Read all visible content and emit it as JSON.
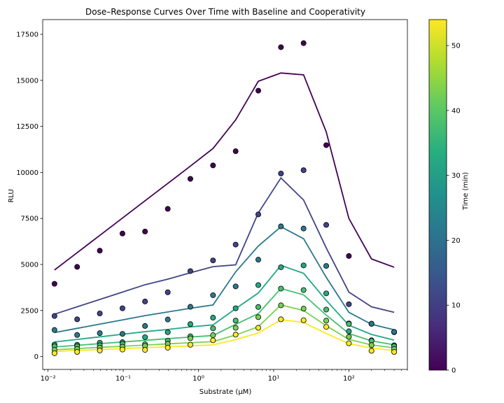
{
  "chart_data": {
    "type": "scatter",
    "title": "Dose–Response Curves Over Time with Baseline and Cooperativity",
    "xlabel": "Substrate (μM)",
    "ylabel": "RLU",
    "xscale": "log",
    "xlim": [
      0.0085,
      600
    ],
    "ylim": [
      -700,
      18300
    ],
    "yticks": [
      0,
      2500,
      5000,
      7500,
      10000,
      12500,
      15000,
      17500
    ],
    "ytick_labels": [
      "0",
      "2500",
      "5000",
      "7500",
      "10000",
      "12500",
      "15000",
      "17500"
    ],
    "xticks": [
      0.01,
      0.1,
      1,
      10,
      100
    ],
    "xtick_labels": [
      "10⁻²",
      "10⁻¹",
      "10⁰",
      "10¹",
      "10²"
    ],
    "grid": false,
    "x": [
      0.0122,
      0.0244,
      0.0488,
      0.0977,
      0.195,
      0.391,
      0.781,
      1.563,
      3.125,
      6.25,
      12.5,
      25,
      50,
      100,
      200,
      400
    ],
    "colorbar": {
      "label": "Time (min)",
      "range": [
        0,
        54
      ],
      "ticks": [
        0,
        10,
        20,
        30,
        40,
        50
      ],
      "tick_labels": [
        "0",
        "10",
        "20",
        "30",
        "40",
        "50"
      ],
      "colormap": "viridis"
    },
    "series": [
      {
        "time": 0,
        "color": "#440154",
        "values": [
          3950,
          4870,
          5750,
          6680,
          6790,
          8020,
          9650,
          10380,
          11150,
          14440,
          16800,
          17020,
          11480,
          5460,
          1780,
          1340
        ],
        "fit": [
          4700,
          5640,
          6580,
          7520,
          8460,
          9400,
          10340,
          11300,
          12850,
          14950,
          15400,
          15300,
          12200,
          7500,
          5300,
          4850
        ]
      },
      {
        "time": 9,
        "color": "#414487",
        "values": [
          2200,
          2020,
          2340,
          2620,
          2990,
          3490,
          4640,
          5220,
          6080,
          7720,
          9940,
          10120,
          7150,
          2840,
          1780,
          1320
        ],
        "fit": [
          2300,
          2700,
          3100,
          3500,
          3900,
          4200,
          4550,
          4880,
          4980,
          7800,
          9700,
          8500,
          5900,
          3500,
          2700,
          2400
        ]
      },
      {
        "time": 18,
        "color": "#2a788e",
        "values": [
          1440,
          1170,
          1270,
          1230,
          1660,
          2010,
          2700,
          3330,
          3810,
          5260,
          7070,
          6950,
          4920,
          1800,
          1780,
          1340
        ],
        "fit": [
          1300,
          1530,
          1760,
          1990,
          2220,
          2420,
          2620,
          2800,
          4600,
          6000,
          7050,
          6400,
          4300,
          2400,
          1750,
          1450
        ]
      },
      {
        "time": 27,
        "color": "#22a884",
        "values": [
          650,
          640,
          750,
          780,
          1050,
          1320,
          1760,
          2110,
          2620,
          3880,
          4850,
          4950,
          3430,
          1370,
          880,
          610
        ],
        "fit": [
          790,
          930,
          1070,
          1210,
          1350,
          1470,
          1610,
          1720,
          2600,
          3450,
          4950,
          4520,
          3050,
          1700,
          1200,
          890
        ]
      },
      {
        "time": 36,
        "color": "#44bf70",
        "values": [
          560,
          560,
          610,
          690,
          670,
          860,
          1100,
          1530,
          1950,
          2690,
          3690,
          3610,
          2550,
          1770,
          850,
          560
        ],
        "fit": [
          520,
          610,
          700,
          790,
          880,
          970,
          1060,
          1140,
          1750,
          2330,
          3700,
          3350,
          2250,
          1250,
          850,
          640
        ]
      },
      {
        "time": 45,
        "color": "#7ad151",
        "values": [
          360,
          410,
          480,
          530,
          580,
          690,
          990,
          1160,
          1560,
          2140,
          2780,
          2600,
          1950,
          1070,
          620,
          410
        ],
        "fit": [
          370,
          430,
          500,
          560,
          620,
          690,
          750,
          810,
          1170,
          1620,
          2800,
          2500,
          1670,
          930,
          630,
          470
        ]
      },
      {
        "time": 54,
        "color": "#fde725",
        "values": [
          180,
          250,
          330,
          380,
          360,
          480,
          640,
          880,
          1190,
          1560,
          2020,
          1970,
          1610,
          720,
          310,
          250
        ],
        "fit": [
          280,
          330,
          380,
          430,
          480,
          530,
          580,
          630,
          920,
          1280,
          2000,
          1850,
          1250,
          700,
          460,
          330
        ]
      }
    ]
  }
}
